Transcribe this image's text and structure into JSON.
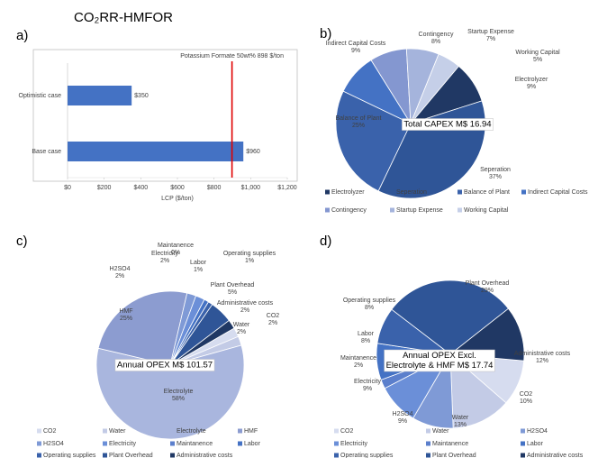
{
  "title": "CO₂RR-HMFOR",
  "panels": [
    "a)",
    "b)",
    "c)",
    "d)"
  ],
  "chart_data": [
    {
      "type": "bar",
      "orientation": "horizontal",
      "categories": [
        "Optimistic case",
        "Base case"
      ],
      "values": [
        350,
        960
      ],
      "value_labels": [
        "$350",
        "$960"
      ],
      "color": "#4472c4",
      "xlabel": "LCP ($/ton)",
      "xlim": [
        0,
        1200
      ],
      "xticks": [
        {
          "value": 0,
          "label": "$0"
        },
        {
          "value": 200,
          "label": "$200"
        },
        {
          "value": 400,
          "label": "$400"
        },
        {
          "value": 600,
          "label": "$600"
        },
        {
          "value": 800,
          "label": "$800"
        },
        {
          "value": 1000,
          "label": "$1,000"
        },
        {
          "value": 1200,
          "label": "$1,200"
        }
      ],
      "reference_line": {
        "value": 898,
        "label": "Potassium Formate 50wt% 898 $/ton",
        "color": "#e00000"
      }
    },
    {
      "type": "pie",
      "center_label": [
        "Total CAPEX M$ 16.94"
      ],
      "categories": [
        "Electrolyzer",
        "Seperation",
        "Balance of Plant",
        "Indirect Capital Costs",
        "Contingency",
        "Startup Expense",
        "Working Capital"
      ],
      "values": [
        9,
        37,
        25,
        9,
        8,
        7,
        5
      ],
      "value_labels": [
        "9%",
        "37%",
        "25%",
        "9%",
        "8%",
        "7%",
        "5%"
      ],
      "colors": [
        "#203864",
        "#2f5597",
        "#3a62ab",
        "#4472c4",
        "#8497d0",
        "#a5b4dc",
        "#c5cfe8"
      ]
    },
    {
      "type": "pie",
      "center_label": [
        "Annual OPEX M$ 101.57"
      ],
      "categories": [
        "CO2",
        "Water",
        "Electrolyte",
        "HMF",
        "H2SO4",
        "Electricity",
        "Maintanence",
        "Labor",
        "Operating supplies",
        "Plant Overhead",
        "Administrative costs"
      ],
      "values": [
        2,
        2,
        58,
        25,
        2,
        2,
        0,
        1,
        1,
        5,
        2
      ],
      "value_labels": [
        "2%",
        "2%",
        "58%",
        "25%",
        "2%",
        "2%",
        "0%",
        "1%",
        "1%",
        "5%",
        "2%"
      ],
      "colors": [
        "#d6dcef",
        "#c3cbe6",
        "#a9b6de",
        "#8c9cd0",
        "#7f9ad6",
        "#6b8fd8",
        "#5b7fcc",
        "#4472c4",
        "#3a62ab",
        "#2f5597",
        "#203864"
      ]
    },
    {
      "type": "pie",
      "center_label": [
        "Annual OPEX Excl.",
        "Electrolyte & HMF M$ 17.74"
      ],
      "categories": [
        "CO2",
        "Water",
        "H2SO4",
        "Electricity",
        "Maintanence",
        "Labor",
        "Operating supplies",
        "Plant Overhead",
        "Administrative costs"
      ],
      "values": [
        10,
        13,
        9,
        9,
        2,
        8,
        8,
        29,
        12
      ],
      "value_labels": [
        "10%",
        "13%",
        "9%",
        "9%",
        "2%",
        "8%",
        "8%",
        "29%",
        "12%"
      ],
      "colors": [
        "#d6dcef",
        "#c3cbe6",
        "#7f9ad6",
        "#6b8fd8",
        "#5b7fcc",
        "#4472c4",
        "#3a62ab",
        "#2f5597",
        "#203864"
      ]
    }
  ]
}
